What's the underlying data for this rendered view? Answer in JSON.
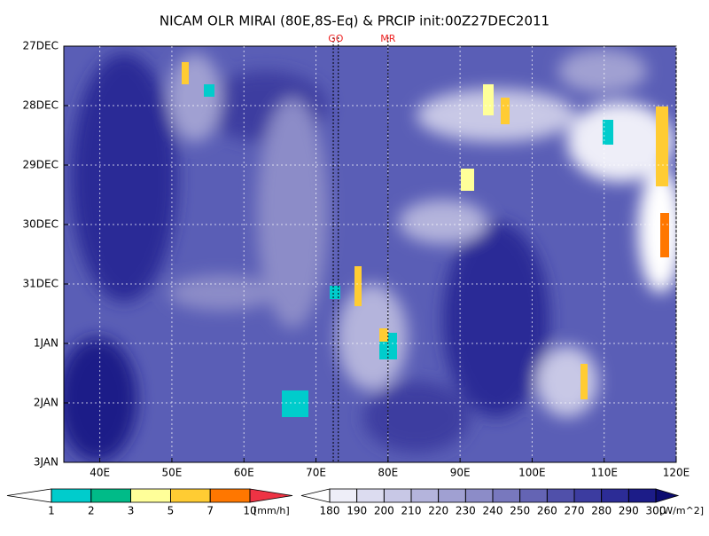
{
  "chart_data": {
    "type": "hovmoller",
    "title": "NICAM OLR MIRAI (80E,8S-Eq) & PRCIP init:00Z27DEC2011",
    "xlim": [
      35,
      120
    ],
    "xticks": [
      {
        "value": 40,
        "label": "40E"
      },
      {
        "value": 50,
        "label": "50E"
      },
      {
        "value": 60,
        "label": "60E"
      },
      {
        "value": 70,
        "label": "70E"
      },
      {
        "value": 80,
        "label": "80E"
      },
      {
        "value": 90,
        "label": "90E"
      },
      {
        "value": 100,
        "label": "100E"
      },
      {
        "value": 110,
        "label": "110E"
      },
      {
        "value": 120,
        "label": "120E"
      }
    ],
    "y_categories": [
      "27DEC",
      "28DEC",
      "29DEC",
      "30DEC",
      "31DEC",
      "1JAN",
      "2JAN",
      "3JAN"
    ],
    "grid": true,
    "markers": [
      {
        "label": "GO",
        "lons": [
          72.4,
          73.1
        ]
      },
      {
        "label": "MR",
        "lons": [
          80
        ]
      }
    ],
    "colorbars": [
      {
        "levels": [
          1,
          2,
          3,
          5,
          7,
          10
        ],
        "unit": "[mm/h]",
        "colors": [
          "#ffffff",
          "#00cccc",
          "#00bb88",
          "#ffff99",
          "#ffcc33",
          "#ff7700",
          "#ee3344"
        ]
      },
      {
        "levels": [
          180,
          190,
          200,
          210,
          220,
          230,
          240,
          250,
          260,
          270,
          280,
          290,
          300
        ],
        "unit": "[W/m^2]",
        "colors": [
          "#ffffff",
          "#eeeef8",
          "#dcdcf0",
          "#c8c8e6",
          "#b4b4dc",
          "#a0a0d2",
          "#8c8cc8",
          "#7878be",
          "#6464b4",
          "#5050aa",
          "#3c3ca0",
          "#2c2c96",
          "#1c1c88",
          "#0c0c70"
        ]
      }
    ]
  }
}
